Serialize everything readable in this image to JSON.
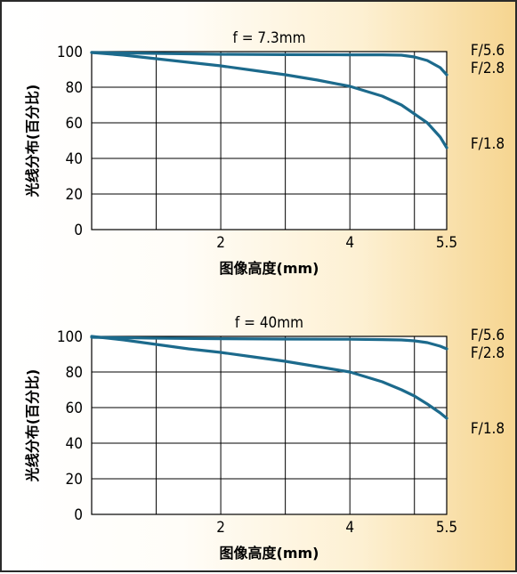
{
  "chart_data": [
    {
      "type": "line",
      "title": "f = 7.3mm",
      "xlabel": "图像高度(mm)",
      "ylabel": "光线分布(百分比)",
      "xlim": [
        0,
        5.5
      ],
      "ylim": [
        0,
        100
      ],
      "x_ticks": [
        "2",
        "4",
        "5.5"
      ],
      "y_ticks": [
        "0",
        "20",
        "40",
        "60",
        "80",
        "100"
      ],
      "grid": true,
      "line_color": "#1c6a8c",
      "series": [
        {
          "name": "F/5.6  F/2.8",
          "x": [
            0,
            1,
            2,
            3,
            4,
            4.5,
            4.8,
            5.0,
            5.2,
            5.4,
            5.5
          ],
          "y": [
            99.5,
            99,
            98.5,
            98.3,
            98.2,
            98.2,
            98,
            97,
            95,
            91,
            87
          ]
        },
        {
          "name": "F/1.8",
          "x": [
            0,
            0.5,
            1,
            1.5,
            2,
            2.5,
            3,
            3.5,
            4,
            4.5,
            4.8,
            5.0,
            5.2,
            5.4,
            5.5
          ],
          "y": [
            99.5,
            98,
            96,
            94,
            92,
            89.5,
            87,
            84,
            80.5,
            75,
            70,
            65,
            60,
            52,
            46
          ]
        }
      ]
    },
    {
      "type": "line",
      "title": "f = 40mm",
      "xlabel": "图像高度(mm)",
      "ylabel": "光线分布(百分比)",
      "xlim": [
        0,
        5.5
      ],
      "ylim": [
        0,
        100
      ],
      "x_ticks": [
        "2",
        "4",
        "5.5"
      ],
      "y_ticks": [
        "0",
        "20",
        "40",
        "60",
        "80",
        "100"
      ],
      "grid": true,
      "line_color": "#1c6a8c",
      "series": [
        {
          "name": "F/5.6  F/2.8",
          "x": [
            0,
            1,
            2,
            3,
            4,
            4.5,
            4.8,
            5.0,
            5.2,
            5.4,
            5.5
          ],
          "y": [
            99.5,
            99,
            98.7,
            98.5,
            98.4,
            98.2,
            98,
            97.5,
            96.5,
            94.5,
            93
          ]
        },
        {
          "name": "F/1.8",
          "x": [
            0,
            0.5,
            1,
            1.5,
            2,
            2.5,
            3,
            3.5,
            4,
            4.5,
            4.8,
            5.0,
            5.2,
            5.4,
            5.5
          ],
          "y": [
            100,
            98,
            95.5,
            93,
            91,
            88.5,
            86,
            83,
            80,
            74.5,
            70,
            66.5,
            62,
            57,
            54
          ]
        }
      ]
    }
  ]
}
